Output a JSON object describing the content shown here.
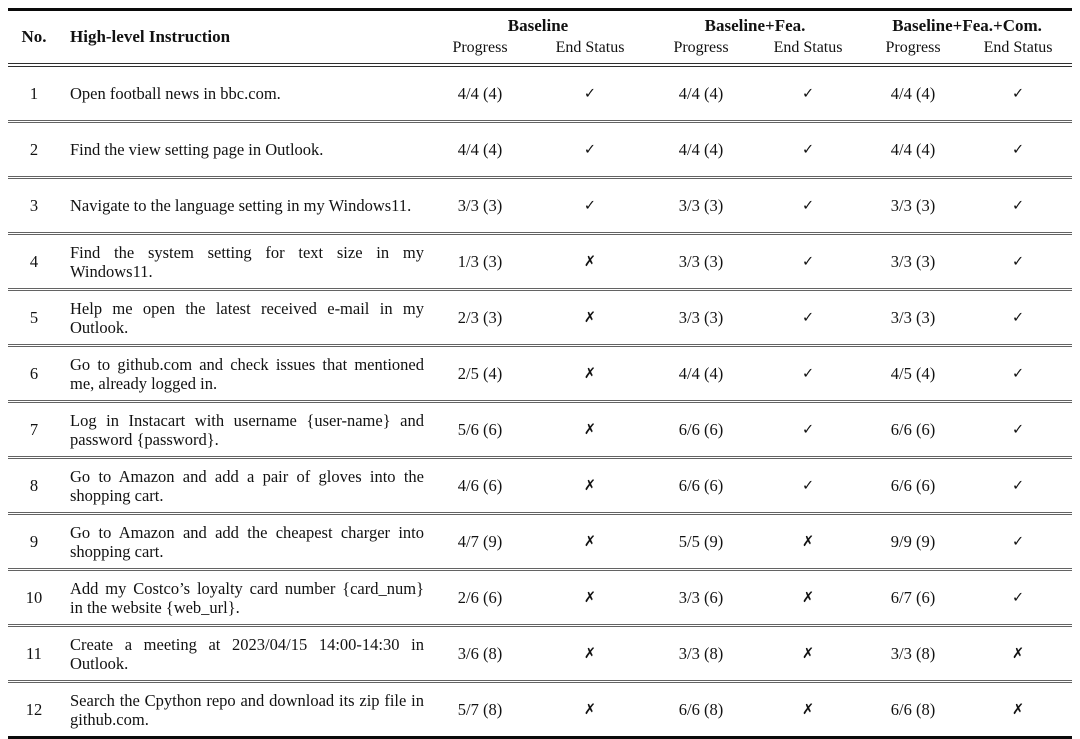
{
  "page": {
    "background": "#ffffff",
    "text_color": "#121212",
    "rule_color": "#0a0a0a"
  },
  "glyphs": {
    "pass_mark": "✓",
    "fail_mark": "✗"
  },
  "table": {
    "header": {
      "no": "No.",
      "instruction": "High-level Instruction",
      "groups": [
        "Baseline",
        "Baseline+Fea.",
        "Baseline+Fea.+Com."
      ],
      "sub_progress": "Progress",
      "sub_end_status": "End Status"
    },
    "rows": [
      {
        "no": "1",
        "instruction": "Open football news in bbc.com.",
        "baseline": {
          "progress": "4/4 (4)",
          "end_status": "✓"
        },
        "baseline_fea": {
          "progress": "4/4 (4)",
          "end_status": "✓"
        },
        "baseline_fea_com": {
          "progress": "4/4 (4)",
          "end_status": "✓"
        }
      },
      {
        "no": "2",
        "instruction": "Find the view setting page in Outlook.",
        "baseline": {
          "progress": "4/4 (4)",
          "end_status": "✓"
        },
        "baseline_fea": {
          "progress": "4/4 (4)",
          "end_status": "✓"
        },
        "baseline_fea_com": {
          "progress": "4/4 (4)",
          "end_status": "✓"
        }
      },
      {
        "no": "3",
        "instruction": "Navigate to the language setting in my Windows11.",
        "baseline": {
          "progress": "3/3 (3)",
          "end_status": "✓"
        },
        "baseline_fea": {
          "progress": "3/3 (3)",
          "end_status": "✓"
        },
        "baseline_fea_com": {
          "progress": "3/3 (3)",
          "end_status": "✓"
        }
      },
      {
        "no": "4",
        "instruction": "Find the system setting for text size in my Windows11.",
        "baseline": {
          "progress": "1/3 (3)",
          "end_status": "✗"
        },
        "baseline_fea": {
          "progress": "3/3 (3)",
          "end_status": "✓"
        },
        "baseline_fea_com": {
          "progress": "3/3 (3)",
          "end_status": "✓"
        }
      },
      {
        "no": "5",
        "instruction": "Help me open the latest received e-mail in my Outlook.",
        "baseline": {
          "progress": "2/3 (3)",
          "end_status": "✗"
        },
        "baseline_fea": {
          "progress": "3/3 (3)",
          "end_status": "✓"
        },
        "baseline_fea_com": {
          "progress": "3/3 (3)",
          "end_status": "✓"
        }
      },
      {
        "no": "6",
        "instruction": "Go to github.com and check issues that mentioned me, already logged in.",
        "baseline": {
          "progress": "2/5 (4)",
          "end_status": "✗"
        },
        "baseline_fea": {
          "progress": "4/4 (4)",
          "end_status": "✓"
        },
        "baseline_fea_com": {
          "progress": "4/5 (4)",
          "end_status": "✓"
        }
      },
      {
        "no": "7",
        "instruction": "Log in Instacart with username {user-name} and password {password}.",
        "baseline": {
          "progress": "5/6 (6)",
          "end_status": "✗"
        },
        "baseline_fea": {
          "progress": "6/6 (6)",
          "end_status": "✓"
        },
        "baseline_fea_com": {
          "progress": "6/6 (6)",
          "end_status": "✓"
        }
      },
      {
        "no": "8",
        "instruction": "Go to Amazon and add a pair of gloves into the shopping cart.",
        "baseline": {
          "progress": "4/6 (6)",
          "end_status": "✗"
        },
        "baseline_fea": {
          "progress": "6/6 (6)",
          "end_status": "✓"
        },
        "baseline_fea_com": {
          "progress": "6/6 (6)",
          "end_status": "✓"
        }
      },
      {
        "no": "9",
        "instruction": "Go to Amazon and add the cheapest charger into shopping cart.",
        "baseline": {
          "progress": "4/7 (9)",
          "end_status": "✗"
        },
        "baseline_fea": {
          "progress": "5/5 (9)",
          "end_status": "✗"
        },
        "baseline_fea_com": {
          "progress": "9/9 (9)",
          "end_status": "✓"
        }
      },
      {
        "no": "10",
        "instruction": "Add my Costco’s loyalty card number {card_num} in the website {web_url}.",
        "baseline": {
          "progress": "2/6 (6)",
          "end_status": "✗"
        },
        "baseline_fea": {
          "progress": "3/3 (6)",
          "end_status": "✗"
        },
        "baseline_fea_com": {
          "progress": "6/7 (6)",
          "end_status": "✓"
        }
      },
      {
        "no": "11",
        "instruction": "Create a meeting at 2023/04/15 14:00-14:30 in Outlook.",
        "baseline": {
          "progress": "3/6 (8)",
          "end_status": "✗"
        },
        "baseline_fea": {
          "progress": "3/3 (8)",
          "end_status": "✗"
        },
        "baseline_fea_com": {
          "progress": "3/3 (8)",
          "end_status": "✗"
        }
      },
      {
        "no": "12",
        "instruction": "Search the Cpython repo and download its zip file in github.com.",
        "baseline": {
          "progress": "5/7 (8)",
          "end_status": "✗"
        },
        "baseline_fea": {
          "progress": "6/6 (8)",
          "end_status": "✗"
        },
        "baseline_fea_com": {
          "progress": "6/6 (8)",
          "end_status": "✗"
        }
      }
    ]
  }
}
